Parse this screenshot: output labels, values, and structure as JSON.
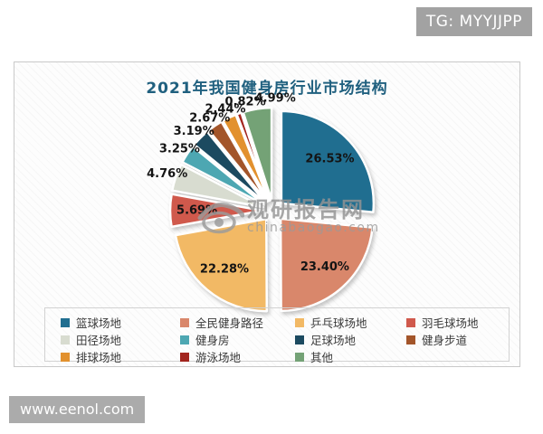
{
  "page": {
    "tg_badge": "TG: MYYJJPP",
    "site_badge": "www.eenol.com"
  },
  "watermark": {
    "logo": "eye-icon",
    "title": "观研报告网",
    "subtitle": "chinabaogao.com"
  },
  "chart_data": {
    "type": "pie",
    "title": "2021年我国健身房行业市场结构",
    "title_color": "#20607F",
    "legend_position": "bottom",
    "label_format": "percent-2-decimals",
    "categories": [
      "篮球场地",
      "全民健身路径",
      "乒乓球场地",
      "羽毛球场地",
      "田径场地",
      "健身房",
      "足球场地",
      "健身步道",
      "排球场地",
      "游泳场地",
      "其他"
    ],
    "values": [
      26.53,
      23.4,
      22.28,
      5.69,
      4.76,
      3.25,
      3.19,
      2.67,
      2.44,
      0.82,
      4.99
    ],
    "colors": [
      "#206E90",
      "#D9876B",
      "#F2B965",
      "#D0594C",
      "#D8DCD0",
      "#4DA7B2",
      "#1C4A60",
      "#A3552A",
      "#E2912E",
      "#A2251E",
      "#74A276"
    ]
  }
}
